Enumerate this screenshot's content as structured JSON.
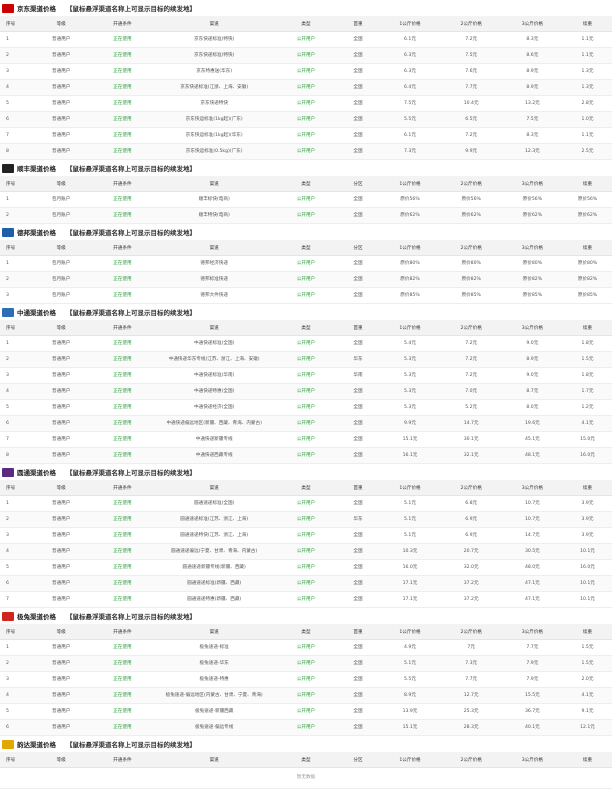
{
  "sections": [
    {
      "title": "京东渠道价格",
      "note": "【鼠标悬浮渠道名称上可显示目标的续发地】",
      "headers": [
        "序号",
        "等级",
        "开通条件",
        "渠道",
        "类型",
        "首重",
        "1公斤价格",
        "2公斤价格",
        "3公斤价格",
        "续重"
      ],
      "rows": [
        [
          "1",
          "普通用户",
          "正在使用",
          "京东快递标准(特快)",
          "公开用户",
          "全国",
          "6.1元",
          "7.2元",
          "8.3元",
          "1.1元"
        ],
        [
          "2",
          "普通用户",
          "正在使用",
          "京东快递标准(特快)",
          "公开用户",
          "全国",
          "6.3元",
          "7.5元",
          "8.6元",
          "1.1元"
        ],
        [
          "3",
          "普通用户",
          "正在使用",
          "京东特惠送(华东)",
          "公开用户",
          "全国",
          "6.3元",
          "7.6元",
          "8.9元",
          "1.3元"
        ],
        [
          "4",
          "普通用户",
          "正在使用",
          "京东快递标准(江浙、上海、安徽)",
          "公开用户",
          "全国",
          "6.4元",
          "7.7元",
          "8.9元",
          "1.3元"
        ],
        [
          "5",
          "普通用户",
          "正在使用",
          "京东快递特快",
          "公开用户",
          "全国",
          "7.5元",
          "10.4元",
          "13.2元",
          "2.8元"
        ],
        [
          "6",
          "普通用户",
          "正在使用",
          "京东快运标准(1kg起)(广东)",
          "公开用户",
          "全国",
          "5.5元",
          "6.5元",
          "7.5元",
          "1.0元"
        ],
        [
          "7",
          "普通用户",
          "正在使用",
          "京东快运标准(1kg起)(华东)",
          "公开用户",
          "全国",
          "6.1元",
          "7.2元",
          "8.3元",
          "1.1元"
        ],
        [
          "8",
          "普通用户",
          "正在使用",
          "京东快运标准(0.5kg)(广东)",
          "公开用户",
          "全国",
          "7.3元",
          "9.9元",
          "12.3元",
          "2.5元"
        ]
      ]
    },
    {
      "title": "顺丰渠道价格",
      "note": "【鼠标悬浮渠道名称上可显示目标的续发地】",
      "headers": [
        "序号",
        "等级",
        "开通条件",
        "渠道",
        "类型",
        "分区",
        "1公斤价格",
        "2公斤价格",
        "3公斤价格",
        "续重"
      ],
      "rows": [
        [
          "1",
          "包月账户",
          "正在使用",
          "顺丰标快(电商)",
          "公开用户",
          "全国",
          "原价56%",
          "原价56%",
          "原价56%",
          "原价56%"
        ],
        [
          "2",
          "包月账户",
          "正在使用",
          "顺丰特快(电商)",
          "公开用户",
          "全国",
          "原价62%",
          "原价62%",
          "原价62%",
          "原价62%"
        ]
      ]
    },
    {
      "title": "德邦渠道价格",
      "note": "【鼠标悬浮渠道名称上可显示目标的续发地】",
      "headers": [
        "序号",
        "等级",
        "开通条件",
        "渠道",
        "类型",
        "分区",
        "1公斤价格",
        "2公斤价格",
        "3公斤价格",
        "续重"
      ],
      "rows": [
        [
          "1",
          "包月账户",
          "正在使用",
          "德邦经济快递",
          "公开用户",
          "全国",
          "原价80%",
          "原价80%",
          "原价80%",
          "原价80%"
        ],
        [
          "2",
          "包月账户",
          "正在使用",
          "德邦标准快递",
          "公开用户",
          "全国",
          "原价82%",
          "原价82%",
          "原价82%",
          "原价82%"
        ],
        [
          "3",
          "包月账户",
          "正在使用",
          "德邦大件快递",
          "公开用户",
          "全国",
          "原价85%",
          "原价85%",
          "原价85%",
          "原价85%"
        ]
      ]
    },
    {
      "title": "中通渠道价格",
      "note": "【鼠标悬浮渠道名称上可显示目标的续发地】",
      "headers": [
        "序号",
        "等级",
        "开通条件",
        "渠道",
        "类型",
        "首重",
        "1公斤价格",
        "2公斤价格",
        "3公斤价格",
        "续重"
      ],
      "rows": [
        [
          "1",
          "普通用户",
          "正在使用",
          "中通快递标准(全国)",
          "公开用户",
          "全国",
          "5.4元",
          "7.2元",
          "9.0元",
          "1.8元"
        ],
        [
          "2",
          "普通用户",
          "正在使用",
          "中通快递华东专线(江苏、浙江、上海、安徽)",
          "公开用户",
          "华东",
          "5.3元",
          "7.2元",
          "8.9元",
          "1.5元"
        ],
        [
          "3",
          "普通用户",
          "正在使用",
          "中通快递标准(华南)",
          "公开用户",
          "华南",
          "5.3元",
          "7.2元",
          "9.0元",
          "1.8元"
        ],
        [
          "4",
          "普通用户",
          "正在使用",
          "中通快递特惠(全国)",
          "公开用户",
          "全国",
          "5.3元",
          "7.0元",
          "8.7元",
          "1.7元"
        ],
        [
          "5",
          "普通用户",
          "正在使用",
          "中通快递经济(全国)",
          "公开用户",
          "全国",
          "5.3元",
          "5.2元",
          "8.0元",
          "1.2元"
        ],
        [
          "6",
          "普通用户",
          "正在使用",
          "中通快递偏远地区(新疆、西藏、青海、内蒙古)",
          "公开用户",
          "全国",
          "9.9元",
          "14.7元",
          "19.6元",
          "4.1元"
        ],
        [
          "7",
          "普通用户",
          "正在使用",
          "中通快递新疆专线",
          "公开用户",
          "全国",
          "15.1元",
          "30.1元",
          "45.1元",
          "15.0元"
        ],
        [
          "8",
          "普通用户",
          "正在使用",
          "中通快递西藏专线",
          "公开用户",
          "全国",
          "16.1元",
          "32.1元",
          "48.1元",
          "16.0元"
        ]
      ]
    },
    {
      "title": "圆通渠道价格",
      "note": "【鼠标悬浮渠道名称上可显示目标的续发地】",
      "headers": [
        "序号",
        "等级",
        "开通条件",
        "渠道",
        "类型",
        "首重",
        "1公斤价格",
        "2公斤价格",
        "3公斤价格",
        "续重"
      ],
      "rows": [
        [
          "1",
          "普通用户",
          "正在使用",
          "圆通速递标准(全国)",
          "公开用户",
          "全国",
          "5.1元",
          "6.8元",
          "10.7元",
          "3.9元"
        ],
        [
          "2",
          "普通用户",
          "正在使用",
          "圆通速递标准(江苏、浙江、上海)",
          "公开用户",
          "华东",
          "5.1元",
          "6.9元",
          "10.7元",
          "3.9元"
        ],
        [
          "3",
          "普通用户",
          "正在使用",
          "圆通速递特快(江苏、浙江、上海)",
          "公开用户",
          "全国",
          "5.1元",
          "6.9元",
          "14.7元",
          "3.9元"
        ],
        [
          "4",
          "普通用户",
          "正在使用",
          "圆通速递偏远(宁夏、甘肃、青海、内蒙古)",
          "公开用户",
          "全国",
          "10.3元",
          "20.7元",
          "30.5元",
          "10.1元"
        ],
        [
          "5",
          "普通用户",
          "正在使用",
          "圆通速递新疆专线(新疆、西藏)",
          "公开用户",
          "全国",
          "16.0元",
          "32.0元",
          "48.0元",
          "16.0元"
        ],
        [
          "6",
          "普通用户",
          "正在使用",
          "圆通速递标准(新疆、西藏)",
          "公开用户",
          "全国",
          "17.1元",
          "37.2元",
          "47.1元",
          "10.1元"
        ],
        [
          "7",
          "普通用户",
          "正在使用",
          "圆通速递特惠(新疆、西藏)",
          "公开用户",
          "全国",
          "17.1元",
          "37.2元",
          "47.1元",
          "10.1元"
        ]
      ]
    },
    {
      "title": "极兔渠道价格",
      "note": "【鼠标悬浮渠道名称上可显示目标的续发地】",
      "headers": [
        "序号",
        "等级",
        "开通条件",
        "渠道",
        "类型",
        "首重",
        "1公斤价格",
        "2公斤价格",
        "3公斤价格",
        "续重"
      ],
      "rows": [
        [
          "1",
          "普通用户",
          "正在使用",
          "极兔速递-标准",
          "公开用户",
          "全国",
          "4.9元",
          "7元",
          "7.7元",
          "1.5元"
        ],
        [
          "2",
          "普通用户",
          "正在使用",
          "极兔速递-华东",
          "公开用户",
          "全国",
          "5.1元",
          "7.3元",
          "7.9元",
          "1.5元"
        ],
        [
          "3",
          "普通用户",
          "正在使用",
          "极兔速递-特惠",
          "公开用户",
          "全国",
          "5.5元",
          "7.7元",
          "7.9元",
          "2.0元"
        ],
        [
          "4",
          "普通用户",
          "正在使用",
          "极兔速递-偏远地区(内蒙古、甘肃、宁夏、青海)",
          "公开用户",
          "全国",
          "8.9元",
          "12.7元",
          "15.5元",
          "4.1元"
        ],
        [
          "5",
          "普通用户",
          "正在使用",
          "极兔速递-新疆西藏",
          "公开用户",
          "全国",
          "13.9元",
          "25.3元",
          "36.7元",
          "9.1元"
        ],
        [
          "6",
          "普通用户",
          "正在使用",
          "极兔速递-偏远专线",
          "公开用户",
          "全国",
          "15.1元",
          "28.3元",
          "40.1元",
          "12.1元"
        ]
      ]
    },
    {
      "title": "韵达渠道价格",
      "note": "【鼠标悬浮渠道名称上可显示目标的续发地】",
      "headers": [
        "序号",
        "等级",
        "开通条件",
        "渠道",
        "类型",
        "分区",
        "1公斤价格",
        "2公斤价格",
        "3公斤价格",
        "续重"
      ],
      "rows": [],
      "empty": "暂无数据"
    }
  ]
}
